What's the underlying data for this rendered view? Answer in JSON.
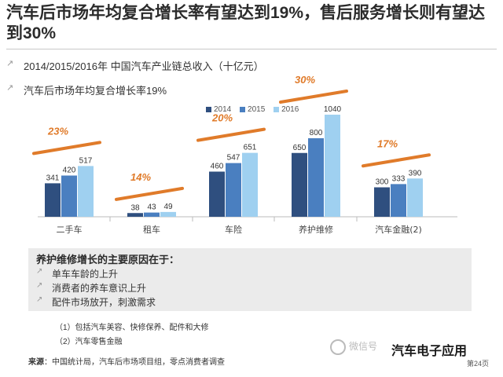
{
  "title": "汽车后市场年均复合增长率有望达到19%，售后服务增长则有望达到30%",
  "bullets": [
    "2014/2015/2016年 中国汽车产业链总收入（十亿元）",
    "汽车后市场年均复合增长率19%"
  ],
  "chart_data": {
    "type": "bar",
    "categories": [
      "二手车",
      "租车",
      "车险",
      "养护维修",
      "汽车金融(2)"
    ],
    "series": [
      {
        "name": "2014",
        "values": [
          341,
          38,
          460,
          650,
          300
        ]
      },
      {
        "name": "2015",
        "values": [
          420,
          43,
          547,
          800,
          333
        ]
      },
      {
        "name": "2016",
        "values": [
          517,
          49,
          651,
          1040,
          390
        ]
      }
    ],
    "growth_labels": [
      "23%",
      "14%",
      "20%",
      "30%",
      "17%"
    ],
    "colors": {
      "2014": "#2f4f7f",
      "2015": "#4a7fc0",
      "2016": "#9fd0f0",
      "arrow": "#e07b2a",
      "growth_text": "#e07b2a"
    },
    "legend_position": "top",
    "grid": false
  },
  "reasons_box": {
    "title": "养护维修增长的主要原因在于：",
    "items": [
      "单车车龄的上升",
      "消费者的养车意识上升",
      "配件市场放开，刺激需求"
    ]
  },
  "notes": [
    "（1）包括汽车美容、快修保养、配件和大修",
    "（2）汽车零售金融"
  ],
  "source": {
    "label": "来源",
    "text": "：中国统计局，汽车后市场项目组，零点消费者调查"
  },
  "watermark": "微信号",
  "brand": "汽车电子应用",
  "page_number": "第24页"
}
